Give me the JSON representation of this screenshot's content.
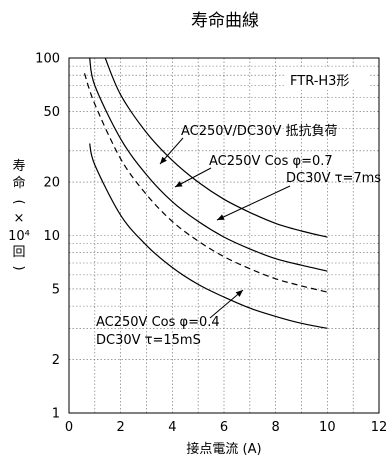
{
  "chart_data": {
    "type": "line",
    "title": "寿命曲線",
    "subtitle": "FTR-H3形",
    "xlabel": "接点電流 (A)",
    "ylabel_chars": [
      "寿",
      "命",
      "(",
      "×",
      "10⁴",
      "回",
      ")"
    ],
    "x_scale": "linear",
    "y_scale": "log",
    "xlim": [
      0,
      12
    ],
    "ylim": [
      1,
      100
    ],
    "xticks": [
      "0",
      "2",
      "4",
      "6",
      "8",
      "10",
      "12"
    ],
    "xtick_values": [
      0,
      2,
      4,
      6,
      8,
      10,
      12
    ],
    "yticks": [
      "1",
      "2",
      "5",
      "10",
      "20",
      "50",
      "100"
    ],
    "ytick_values": [
      1,
      2,
      5,
      10,
      20,
      50,
      100
    ],
    "grid": true,
    "series": [
      {
        "name": "AC250V/DC30V 抵抗負荷",
        "style": "solid",
        "points": [
          [
            1.4,
            100
          ],
          [
            2,
            62
          ],
          [
            3,
            38
          ],
          [
            4,
            26.5
          ],
          [
            5,
            20
          ],
          [
            6,
            16
          ],
          [
            7,
            13.5
          ],
          [
            8,
            11.7
          ],
          [
            9,
            10.6
          ],
          [
            10,
            9.8
          ]
        ]
      },
      {
        "name": "AC250V Cos φ=0.7",
        "style": "solid",
        "points": [
          [
            0.8,
            100
          ],
          [
            1,
            70
          ],
          [
            2,
            35
          ],
          [
            3,
            22
          ],
          [
            4,
            15.5
          ],
          [
            5,
            12
          ],
          [
            6,
            9.8
          ],
          [
            7,
            8.4
          ],
          [
            8,
            7.4
          ],
          [
            9,
            6.8
          ],
          [
            10,
            6.3
          ]
        ]
      },
      {
        "name": "DC30V τ=7ms",
        "style": "dashed",
        "points": [
          [
            0.6,
            82
          ],
          [
            1,
            55
          ],
          [
            2,
            27
          ],
          [
            3,
            17
          ],
          [
            4,
            12
          ],
          [
            5,
            9.3
          ],
          [
            6,
            7.6
          ],
          [
            7,
            6.5
          ],
          [
            8,
            5.7
          ],
          [
            9,
            5.2
          ],
          [
            10,
            4.8
          ]
        ]
      },
      {
        "name": "AC250V Cos φ=0.4 / DC30V τ=15mS",
        "style": "solid",
        "points": [
          [
            0.8,
            33
          ],
          [
            1,
            25
          ],
          [
            2,
            13
          ],
          [
            3,
            8.8
          ],
          [
            4,
            6.6
          ],
          [
            5,
            5.3
          ],
          [
            6,
            4.5
          ],
          [
            7,
            3.9
          ],
          [
            8,
            3.5
          ],
          [
            9,
            3.2
          ],
          [
            10,
            3.0
          ]
        ]
      }
    ],
    "annotations": [
      {
        "text": "AC250V/DC30V 抵抗負荷",
        "series": 0
      },
      {
        "text": "AC250V Cos φ=0.7",
        "series": 1
      },
      {
        "text": "DC30V τ=7ms",
        "series": 2
      },
      {
        "text": "AC250V Cos φ=0.4",
        "series": 3
      },
      {
        "text": "DC30V τ=15mS",
        "series": 3
      }
    ]
  }
}
